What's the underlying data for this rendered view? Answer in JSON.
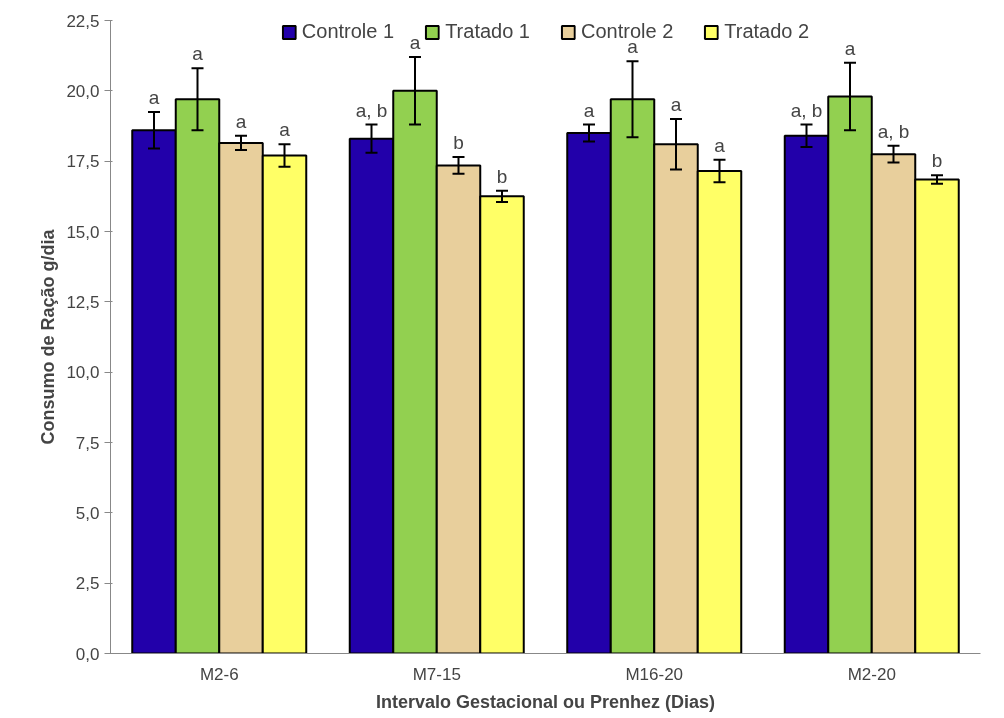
{
  "chart_data": {
    "type": "bar",
    "xlabel": "Intervalo Gestacional ou Prenhez (Dias)",
    "ylabel": "Consumo de Ração g/dia",
    "categories": [
      "M2-6",
      "M7-15",
      "M16-20",
      "M2-20"
    ],
    "series": [
      {
        "name": "Controle 1",
        "color": "#2200aa",
        "values": [
          18.6,
          18.3,
          18.5,
          18.4
        ],
        "errors": [
          0.65,
          0.5,
          0.3,
          0.4
        ],
        "value_labels": [
          "a",
          "a, b",
          "a",
          "a, b"
        ]
      },
      {
        "name": "Tratado 1",
        "color": "#92d050",
        "values": [
          19.7,
          20.0,
          19.7,
          19.8
        ],
        "errors": [
          1.1,
          1.2,
          1.35,
          1.2
        ],
        "value_labels": [
          "a",
          "a",
          "a",
          "a"
        ]
      },
      {
        "name": "Controle 2",
        "color": "#e8cf9c",
        "values": [
          18.15,
          17.35,
          18.1,
          17.75
        ],
        "errors": [
          0.25,
          0.3,
          0.9,
          0.3
        ],
        "value_labels": [
          "a",
          "b",
          "a",
          "a, b"
        ]
      },
      {
        "name": "Tratado 2",
        "color": "#ffff66",
        "values": [
          17.7,
          16.25,
          17.15,
          16.85
        ],
        "errors": [
          0.4,
          0.2,
          0.4,
          0.15
        ],
        "value_labels": [
          "a",
          "b",
          "a",
          "b"
        ]
      }
    ],
    "ylim": [
      0,
      22.5
    ],
    "yticks": [
      {
        "value": 0,
        "label": "0,0"
      },
      {
        "value": 2.5,
        "label": "2,5"
      },
      {
        "value": 5,
        "label": "5,0"
      },
      {
        "value": 7.5,
        "label": "7,5"
      },
      {
        "value": 10,
        "label": "10,0"
      },
      {
        "value": 12.5,
        "label": "12,5"
      },
      {
        "value": 15,
        "label": "15,0"
      },
      {
        "value": 17.5,
        "label": "17,5"
      },
      {
        "value": 20,
        "label": "20,0"
      },
      {
        "value": 22.5,
        "label": "22,5"
      }
    ],
    "grid": false,
    "legend": "top"
  }
}
